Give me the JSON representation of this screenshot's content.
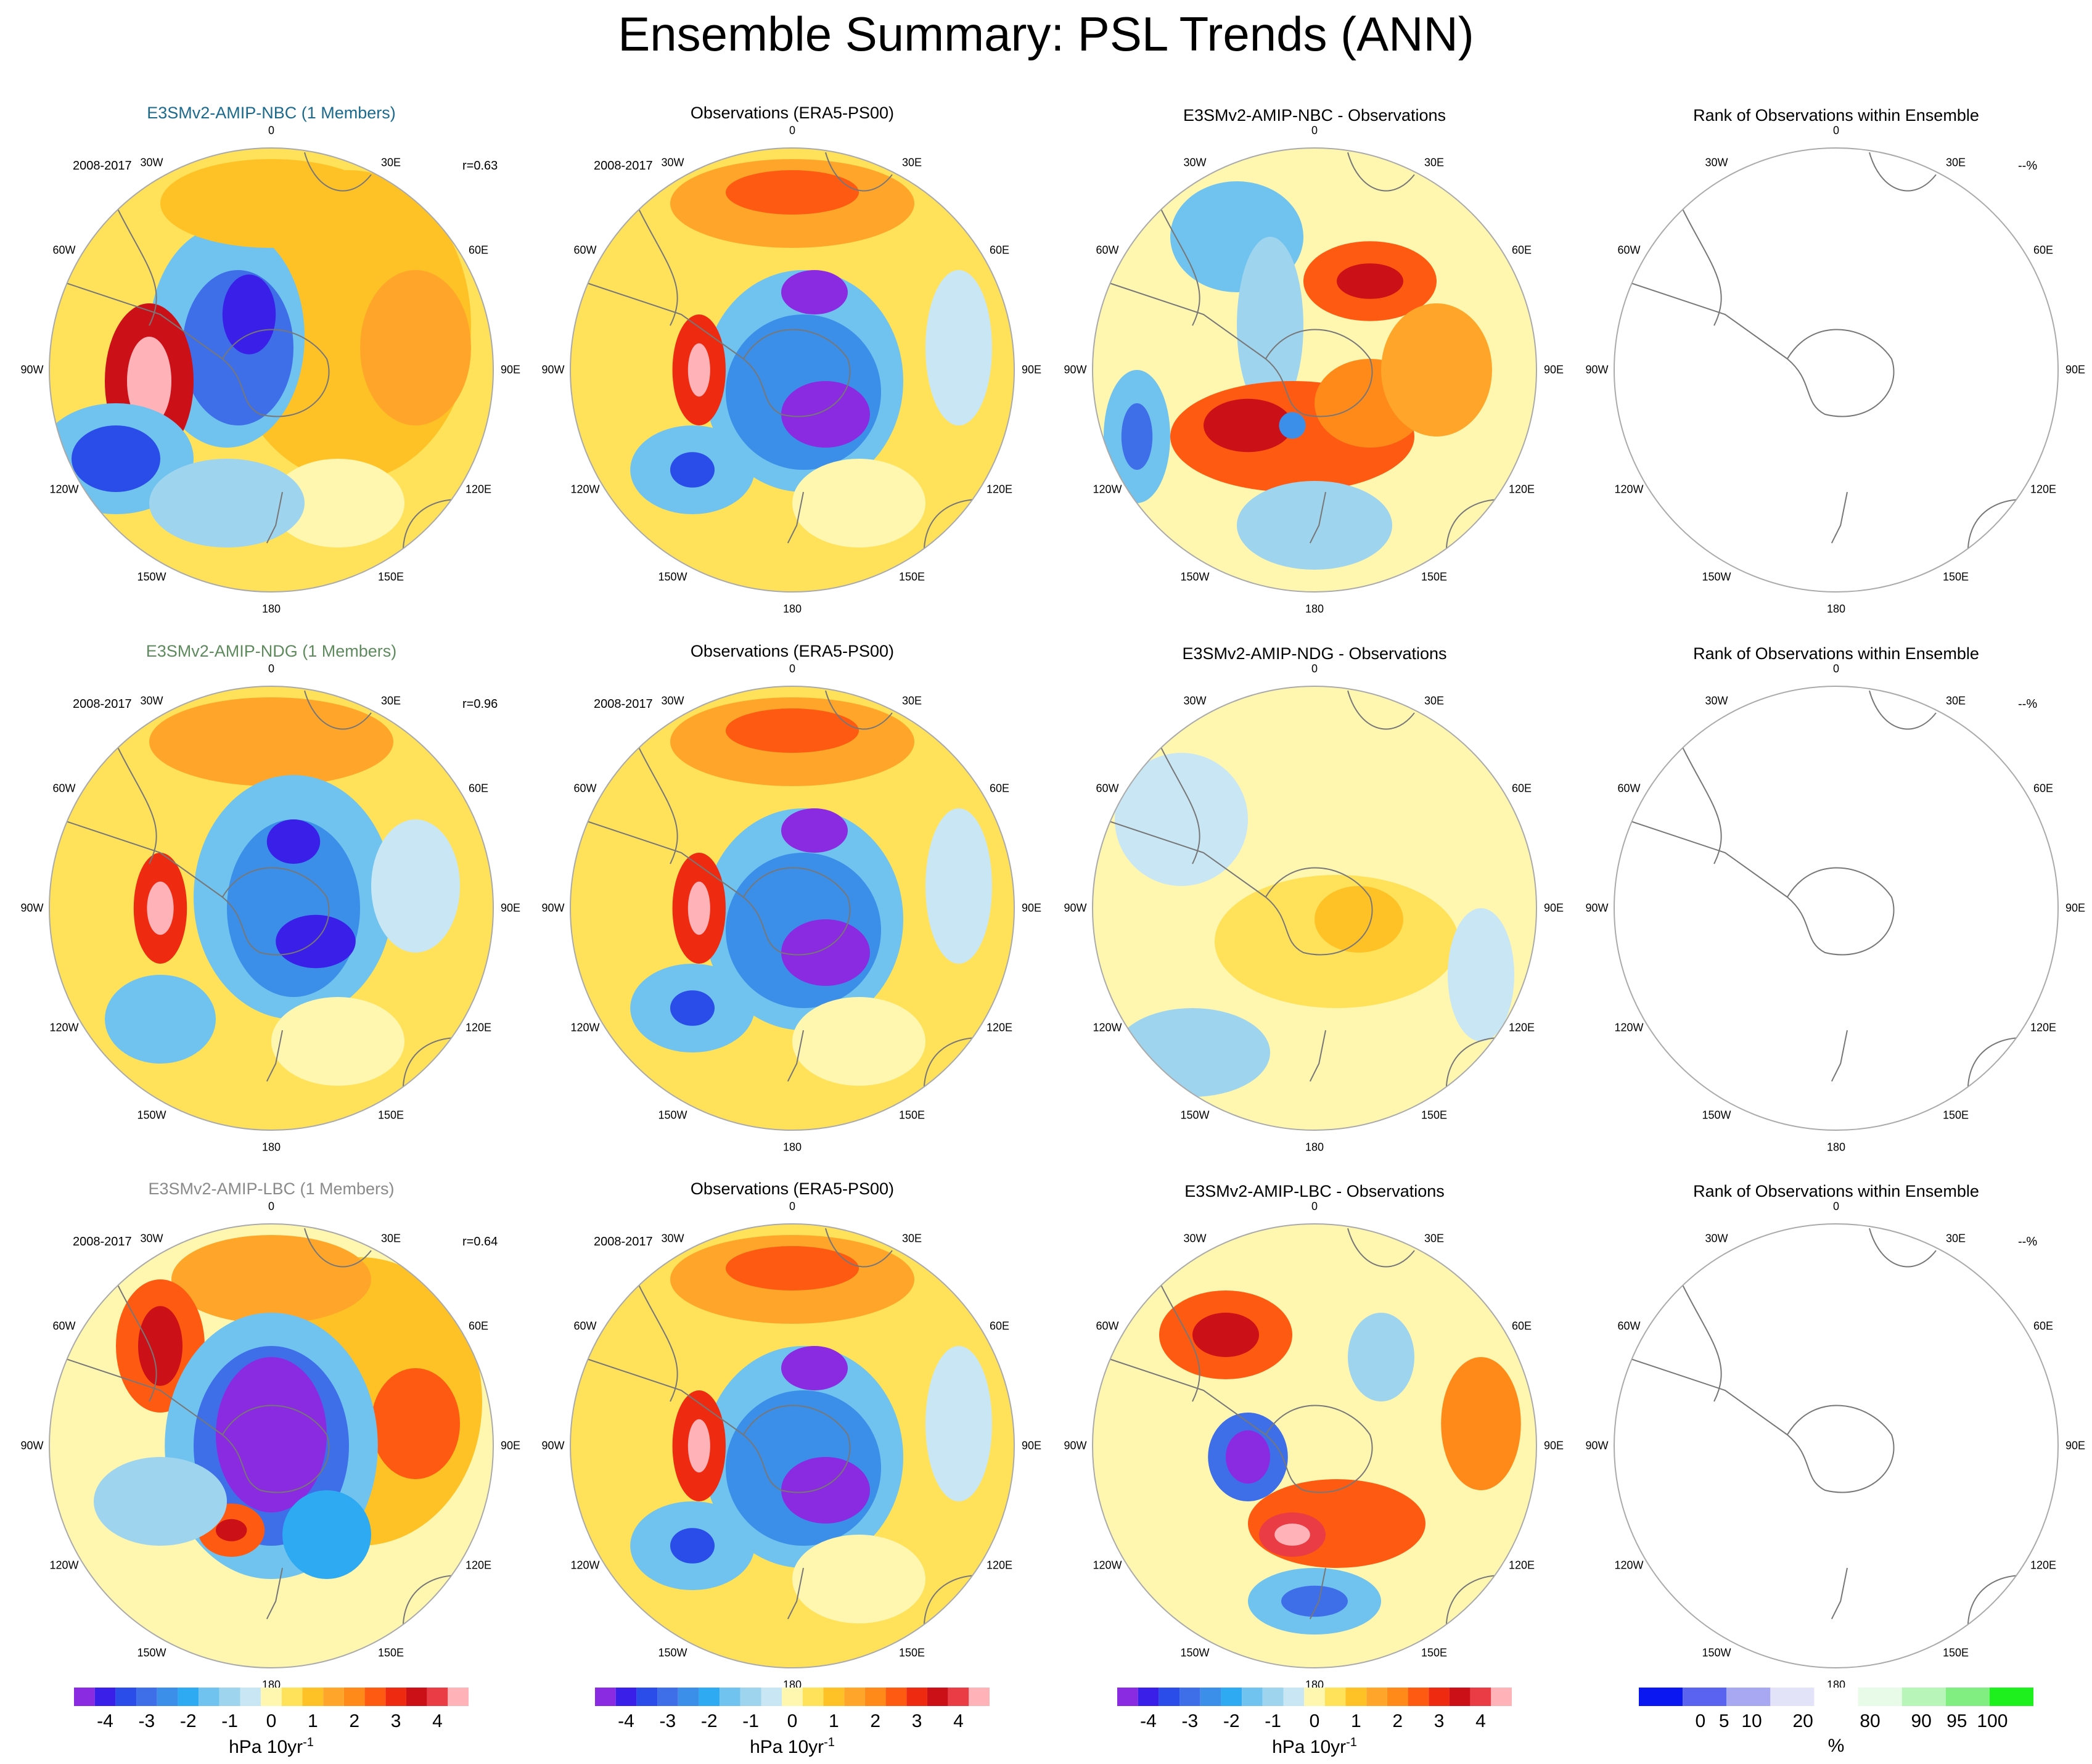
{
  "title": "Ensemble Summary: PSL Trends (ANN)",
  "colors": {
    "levels": [
      "#8a2be2",
      "#3a1fe8",
      "#2a4ce8",
      "#3f6fe8",
      "#3b8fe8",
      "#2eaaf2",
      "#6fc3ee",
      "#9fd4ee",
      "#c9e6f4",
      "#fff7b0",
      "#ffe15a",
      "#ffc226",
      "#ffa62a",
      "#ff8a1a",
      "#ff5a12",
      "#ee2a10",
      "#cc1018",
      "#ea3c44",
      "#ffb3b8"
    ],
    "rank_levels": [
      "#0b17f0",
      "#5a62f0",
      "#a8a8f2",
      "#e2e2f8",
      "#ffffff",
      "#e8fbe8",
      "#b8f5b8",
      "#80ee80",
      "#1ef01e"
    ],
    "title_model_nbc": "#1b6a8e",
    "title_model_ndg": "#5e8a5e",
    "title_model_lbc": "#8a8a8a"
  },
  "lon_labels": [
    "0",
    "30E",
    "60E",
    "90E",
    "120E",
    "150E",
    "180",
    "150W",
    "120W",
    "90W",
    "60W",
    "30W"
  ],
  "rows": [
    {
      "model_title": "E3SMv2-AMIP-NBC (1 Members)",
      "period": "2008-2017",
      "corr": "r=0.63",
      "obs_title": "Observations (ERA5-PS00)",
      "obs_period": "2008-2017",
      "diff_title": "E3SMv2-AMIP-NBC - Observations",
      "rank_title": "Rank of Observations within Ensemble",
      "rank_pct": "--%"
    },
    {
      "model_title": "E3SMv2-AMIP-NDG (1 Members)",
      "period": "2008-2017",
      "corr": "r=0.96",
      "obs_title": "Observations (ERA5-PS00)",
      "obs_period": "2008-2017",
      "diff_title": "E3SMv2-AMIP-NDG - Observations",
      "rank_title": "Rank of Observations within Ensemble",
      "rank_pct": "--%"
    },
    {
      "model_title": "E3SMv2-AMIP-LBC (1 Members)",
      "period": "2008-2017",
      "corr": "r=0.64",
      "obs_title": "Observations (ERA5-PS00)",
      "obs_period": "2008-2017",
      "diff_title": "E3SMv2-AMIP-LBC - Observations",
      "rank_title": "Rank of Observations within Ensemble",
      "rank_pct": "--%"
    }
  ],
  "colorbar": {
    "ticks": [
      "-4",
      "-3",
      "-2",
      "-1",
      "0",
      "1",
      "2",
      "3",
      "4"
    ],
    "unit": "hPa 10yr",
    "unit_sup": "-1"
  },
  "rank_colorbar": {
    "ticks": [
      "0",
      "5",
      "10",
      "20",
      "80",
      "90",
      "95",
      "100"
    ],
    "unit": "%"
  },
  "chart_data": [
    {
      "type": "heatmap",
      "projection": "south-polar-stereographic",
      "variable": "PSL trend",
      "season": "ANN",
      "units": "hPa 10yr-1",
      "colorbar_range": [
        -4,
        4
      ],
      "title": "E3SMv2-AMIP-NBC (1 Members)",
      "period": "2008-2017",
      "correlation": 0.63
    },
    {
      "type": "heatmap",
      "projection": "south-polar-stereographic",
      "variable": "PSL trend",
      "season": "ANN",
      "units": "hPa 10yr-1",
      "colorbar_range": [
        -4,
        4
      ],
      "title": "Observations (ERA5-PS00)",
      "period": "2008-2017"
    },
    {
      "type": "heatmap",
      "projection": "south-polar-stereographic",
      "variable": "PSL trend",
      "season": "ANN",
      "units": "hPa 10yr-1",
      "colorbar_range": [
        -4,
        4
      ],
      "title": "E3SMv2-AMIP-NBC - Observations"
    },
    {
      "type": "heatmap",
      "projection": "south-polar-stereographic",
      "units": "%",
      "colorbar_range": [
        0,
        100
      ],
      "title": "Rank of Observations within Ensemble",
      "value": "--%"
    },
    {
      "type": "heatmap",
      "projection": "south-polar-stereographic",
      "variable": "PSL trend",
      "season": "ANN",
      "units": "hPa 10yr-1",
      "colorbar_range": [
        -4,
        4
      ],
      "title": "E3SMv2-AMIP-NDG (1 Members)",
      "period": "2008-2017",
      "correlation": 0.96
    },
    {
      "type": "heatmap",
      "projection": "south-polar-stereographic",
      "variable": "PSL trend",
      "season": "ANN",
      "units": "hPa 10yr-1",
      "colorbar_range": [
        -4,
        4
      ],
      "title": "Observations (ERA5-PS00)",
      "period": "2008-2017"
    },
    {
      "type": "heatmap",
      "projection": "south-polar-stereographic",
      "variable": "PSL trend",
      "season": "ANN",
      "units": "hPa 10yr-1",
      "colorbar_range": [
        -4,
        4
      ],
      "title": "E3SMv2-AMIP-NDG - Observations"
    },
    {
      "type": "heatmap",
      "projection": "south-polar-stereographic",
      "units": "%",
      "colorbar_range": [
        0,
        100
      ],
      "title": "Rank of Observations within Ensemble",
      "value": "--%"
    },
    {
      "type": "heatmap",
      "projection": "south-polar-stereographic",
      "variable": "PSL trend",
      "season": "ANN",
      "units": "hPa 10yr-1",
      "colorbar_range": [
        -4,
        4
      ],
      "title": "E3SMv2-AMIP-LBC (1 Members)",
      "period": "2008-2017",
      "correlation": 0.64
    },
    {
      "type": "heatmap",
      "projection": "south-polar-stereographic",
      "variable": "PSL trend",
      "season": "ANN",
      "units": "hPa 10yr-1",
      "colorbar_range": [
        -4,
        4
      ],
      "title": "Observations (ERA5-PS00)",
      "period": "2008-2017"
    },
    {
      "type": "heatmap",
      "projection": "south-polar-stereographic",
      "variable": "PSL trend",
      "season": "ANN",
      "units": "hPa 10yr-1",
      "colorbar_range": [
        -4,
        4
      ],
      "title": "E3SMv2-AMIP-LBC - Observations"
    },
    {
      "type": "heatmap",
      "projection": "south-polar-stereographic",
      "units": "%",
      "colorbar_range": [
        0,
        100
      ],
      "title": "Rank of Observations within Ensemble",
      "value": "--%"
    }
  ]
}
